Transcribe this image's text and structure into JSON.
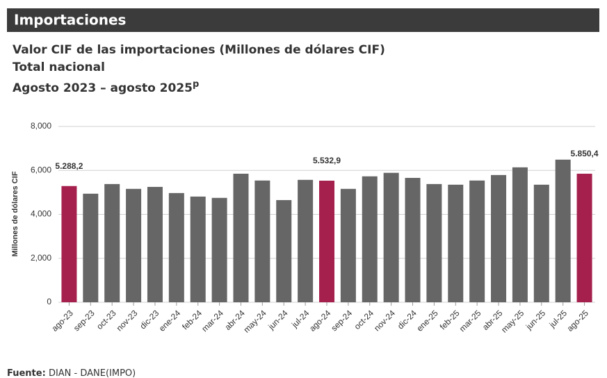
{
  "header": "Importaciones",
  "chart_data": {
    "type": "bar",
    "title": "Valor CIF de las importaciones (Millones de dólares CIF)",
    "subtitle": "Total nacional",
    "period": "Agosto 2023 – agosto 2025",
    "period_mark": "p",
    "y_label": "Millones de dólares CIF",
    "categories": [
      "ago-23",
      "sep-23",
      "oct-23",
      "nov-23",
      "dic-23",
      "ene-24",
      "feb-24",
      "mar-24",
      "abr-24",
      "may-24",
      "jun-24",
      "jul-24",
      "ago-24",
      "sep-24",
      "oct-24",
      "nov-24",
      "dic-24",
      "ene-25",
      "feb-25",
      "mar-25",
      "abr-25",
      "may-25",
      "jun-25",
      "jul-25",
      "ago-25"
    ],
    "values": [
      5288.2,
      4940,
      5380,
      5160,
      5250,
      4970,
      4810,
      4750,
      5850,
      5540,
      4650,
      5570,
      5532.9,
      5160,
      5730,
      5890,
      5660,
      5380,
      5350,
      5540,
      5790,
      6140,
      5350,
      6490,
      5850.4
    ],
    "value_labels": [
      "5.288,2",
      null,
      null,
      null,
      null,
      null,
      null,
      null,
      null,
      null,
      null,
      null,
      "5.532,9",
      null,
      null,
      null,
      null,
      null,
      null,
      null,
      null,
      null,
      null,
      null,
      "5.850,4"
    ],
    "colors": [
      "#a5204c",
      "#666666",
      "#666666",
      "#666666",
      "#666666",
      "#666666",
      "#666666",
      "#666666",
      "#666666",
      "#666666",
      "#666666",
      "#666666",
      "#a5204c",
      "#666666",
      "#666666",
      "#666666",
      "#666666",
      "#666666",
      "#666666",
      "#666666",
      "#666666",
      "#666666",
      "#666666",
      "#666666",
      "#a5204c"
    ],
    "ylim": [
      0,
      8000
    ],
    "yticks": [
      0,
      {
        "value": 2000,
        "label": "2,000"
      },
      {
        "value": 4000,
        "label": "4,000"
      },
      {
        "value": 6000,
        "label": "6,000"
      },
      {
        "value": 8000,
        "label": "8,000"
      }
    ],
    "grid": true
  },
  "footer": {
    "label": "Fuente:",
    "text": "DIAN - DANE(IMPO)"
  }
}
